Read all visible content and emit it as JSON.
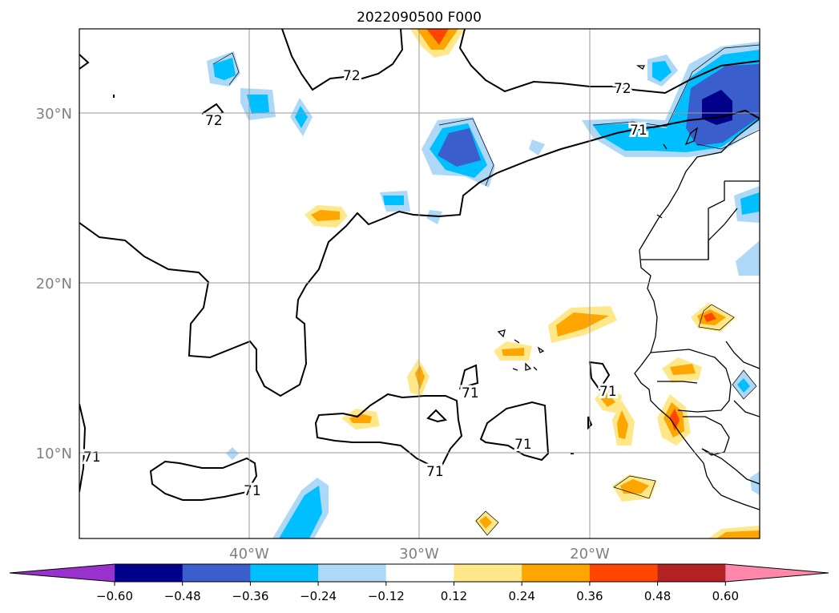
{
  "title": "2022090500 F000",
  "lat_labels": [
    "30°N",
    "20°N",
    "10°N"
  ],
  "lon_labels": [
    "40°W",
    "30°W",
    "20°W"
  ],
  "map": {
    "extent": {
      "lon_min": -50,
      "lon_max": -10,
      "lat_min": 5,
      "lat_max": 35
    },
    "gridlines": true,
    "gridline_lons": [
      -40,
      -30,
      -20
    ],
    "gridline_lats": [
      30,
      20,
      10
    ],
    "contour_labels": [
      "72",
      "72",
      "72",
      "71",
      "71",
      "71",
      "71",
      "71",
      "71",
      "71"
    ]
  },
  "colorbar": {
    "orientation": "horizontal",
    "extend": "both",
    "tick_labels": [
      "−0.60",
      "−0.48",
      "−0.36",
      "−0.24",
      "−0.12",
      "0.12",
      "0.24",
      "0.36",
      "0.48",
      "0.60"
    ],
    "levels": [
      -0.6,
      -0.48,
      -0.36,
      -0.24,
      -0.12,
      0.12,
      0.24,
      0.36,
      0.48,
      0.6
    ],
    "colors": [
      "#9932cc",
      "#00008b",
      "#3a5fcd",
      "#00bfff",
      "#add8f7",
      "#ffffff",
      "#ffe78a",
      "#ffa500",
      "#ff4500",
      "#b22222",
      "#ff88aa"
    ]
  }
}
